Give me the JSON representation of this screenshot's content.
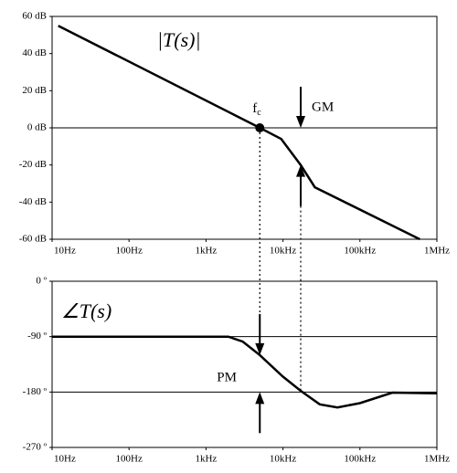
{
  "chart_data": [
    {
      "type": "line",
      "label": "|T(s)|",
      "log_x": true,
      "color": "#000000",
      "x": [
        12,
        5000,
        9500,
        17000,
        26000,
        600000
      ],
      "values": [
        55,
        0,
        -6,
        -20,
        -32,
        -60
      ],
      "xlim": [
        10,
        1000000
      ],
      "xticks": [
        {
          "value": 10,
          "label": "10Hz"
        },
        {
          "value": 100,
          "label": "100Hz"
        },
        {
          "value": 1000,
          "label": "1kHz"
        },
        {
          "value": 10000,
          "label": "10kHz"
        },
        {
          "value": 100000,
          "label": "100kHz"
        },
        {
          "value": 1000000,
          "label": "1MHz"
        }
      ],
      "ylim": [
        -60,
        60
      ],
      "yticks": [
        {
          "value": 60,
          "label": "60 dB"
        },
        {
          "value": 40,
          "label": "40 dB"
        },
        {
          "value": 20,
          "label": "20 dB"
        },
        {
          "value": 0,
          "label": "0 dB"
        },
        {
          "value": -20,
          "label": "-20 dB"
        },
        {
          "value": -40,
          "label": "-40 dB"
        },
        {
          "value": -60,
          "label": "-60 dB"
        }
      ],
      "hlines": [
        0
      ],
      "point": {
        "label": "f",
        "sub": "c",
        "x": 5000,
        "y": 0
      },
      "arrows": {
        "label": "GM",
        "x": 17000,
        "from": 0,
        "to": -20
      }
    },
    {
      "type": "line",
      "label": "∠T(s)",
      "log_x": true,
      "color": "#000000",
      "x": [
        10,
        1950,
        3000,
        5000,
        10000,
        17000,
        30000,
        51000,
        100000,
        263000,
        1000000
      ],
      "values": [
        -90,
        -90,
        -98,
        -120,
        -155,
        -178,
        -200,
        -205,
        -198,
        -181,
        -182
      ],
      "xlim": [
        10,
        1000000
      ],
      "xticks": [
        {
          "value": 10,
          "label": "10Hz"
        },
        {
          "value": 100,
          "label": "100Hz"
        },
        {
          "value": 1000,
          "label": "1kHz"
        },
        {
          "value": 10000,
          "label": "10kHz"
        },
        {
          "value": 100000,
          "label": "100kHz"
        },
        {
          "value": 1000000,
          "label": "1MHz"
        }
      ],
      "ylim": [
        -270,
        0
      ],
      "yticks": [
        {
          "value": 0,
          "label": "0 º"
        },
        {
          "value": -90,
          "label": "-90 º"
        },
        {
          "value": -180,
          "label": "-180 º"
        },
        {
          "value": -270,
          "label": "-270 º"
        }
      ],
      "hlines": [
        -90,
        -180
      ],
      "arrows": {
        "label": "PM",
        "x": 5000,
        "from": -120,
        "to": -180
      }
    }
  ]
}
